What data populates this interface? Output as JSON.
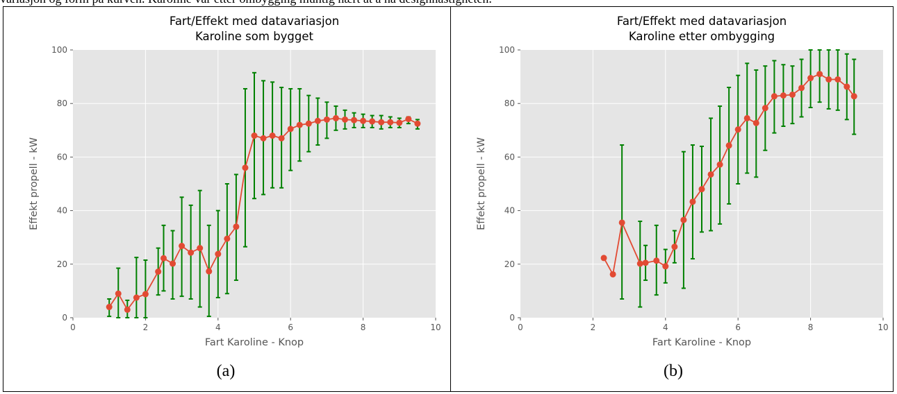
{
  "page_text": {
    "top_line": "variasjon og form på kurven. Karoline var etter ombygging muntig nært at å ha designhastigheten."
  },
  "captions": [
    "(a)",
    "(b)"
  ],
  "colors": {
    "plot_bg": "#e5e5e5",
    "grid": "#ffffff",
    "line": "#e24a33",
    "errorbar": "#008000"
  },
  "chart_data": [
    {
      "type": "line",
      "title": "Fart/Effekt med datavariasjon",
      "subtitle": "Karoline som bygget",
      "xlabel": "Fart Karoline - Knop",
      "ylabel": "Effekt propell - kW",
      "xlim": [
        0,
        10
      ],
      "ylim": [
        0,
        100
      ],
      "xticks": [
        0,
        2,
        4,
        6,
        8,
        10
      ],
      "yticks": [
        0,
        20,
        40,
        60,
        80,
        100
      ],
      "grid": true,
      "points": [
        {
          "x": 1.0,
          "y": 4,
          "lo": 0.5,
          "hi": 7
        },
        {
          "x": 1.25,
          "y": 9,
          "lo": 0,
          "hi": 18.5
        },
        {
          "x": 1.5,
          "y": 3,
          "lo": 0,
          "hi": 6.5
        },
        {
          "x": 1.75,
          "y": 7.5,
          "lo": 0,
          "hi": 22.5
        },
        {
          "x": 2.0,
          "y": 8.8,
          "lo": 0,
          "hi": 21.5
        },
        {
          "x": 2.35,
          "y": 17.2,
          "lo": 8.5,
          "hi": 26
        },
        {
          "x": 2.5,
          "y": 22.2,
          "lo": 10,
          "hi": 34.5
        },
        {
          "x": 2.75,
          "y": 20.2,
          "lo": 7,
          "hi": 32.5
        },
        {
          "x": 3.0,
          "y": 26.8,
          "lo": 8,
          "hi": 45
        },
        {
          "x": 3.25,
          "y": 24.3,
          "lo": 7,
          "hi": 42
        },
        {
          "x": 3.5,
          "y": 26,
          "lo": 4,
          "hi": 47.5
        },
        {
          "x": 3.75,
          "y": 17.3,
          "lo": 0.5,
          "hi": 34.5
        },
        {
          "x": 4.0,
          "y": 23.8,
          "lo": 7.5,
          "hi": 40
        },
        {
          "x": 4.25,
          "y": 29.5,
          "lo": 9,
          "hi": 50
        },
        {
          "x": 4.5,
          "y": 34,
          "lo": 14,
          "hi": 53.5
        },
        {
          "x": 4.75,
          "y": 56,
          "lo": 26.5,
          "hi": 85.5
        },
        {
          "x": 5.0,
          "y": 68,
          "lo": 44.5,
          "hi": 91.5
        },
        {
          "x": 5.25,
          "y": 67,
          "lo": 46,
          "hi": 88.5
        },
        {
          "x": 5.5,
          "y": 68,
          "lo": 48.5,
          "hi": 88
        },
        {
          "x": 5.75,
          "y": 67,
          "lo": 48.5,
          "hi": 86
        },
        {
          "x": 6.0,
          "y": 70.5,
          "lo": 55,
          "hi": 85.5
        },
        {
          "x": 6.25,
          "y": 72,
          "lo": 58.5,
          "hi": 85.5
        },
        {
          "x": 6.5,
          "y": 72.5,
          "lo": 62,
          "hi": 83
        },
        {
          "x": 6.75,
          "y": 73.5,
          "lo": 64.5,
          "hi": 82
        },
        {
          "x": 7.0,
          "y": 74,
          "lo": 67,
          "hi": 80.5
        },
        {
          "x": 7.25,
          "y": 74.5,
          "lo": 70,
          "hi": 79
        },
        {
          "x": 7.5,
          "y": 74,
          "lo": 70.5,
          "hi": 77.5
        },
        {
          "x": 7.75,
          "y": 73.8,
          "lo": 71,
          "hi": 76.5
        },
        {
          "x": 8.0,
          "y": 73.5,
          "lo": 71,
          "hi": 76
        },
        {
          "x": 8.25,
          "y": 73.3,
          "lo": 71,
          "hi": 75.5
        },
        {
          "x": 8.5,
          "y": 73,
          "lo": 70.5,
          "hi": 75.5
        },
        {
          "x": 8.75,
          "y": 73,
          "lo": 71,
          "hi": 75
        },
        {
          "x": 9.0,
          "y": 72.8,
          "lo": 71,
          "hi": 74.5
        },
        {
          "x": 9.25,
          "y": 74.2,
          "lo": 72.5,
          "hi": 75
        },
        {
          "x": 9.5,
          "y": 72.5,
          "lo": 70.5,
          "hi": 74
        }
      ]
    },
    {
      "type": "line",
      "title": "Fart/Effekt med datavariasjon",
      "subtitle": "Karoline etter ombygging",
      "xlabel": "Fart Karoline - Knop",
      "ylabel": "Effekt propell - kW",
      "xlim": [
        0,
        10
      ],
      "ylim": [
        0,
        100
      ],
      "xticks": [
        0,
        2,
        4,
        6,
        8,
        10
      ],
      "yticks": [
        0,
        20,
        40,
        60,
        80,
        100
      ],
      "grid": true,
      "points": [
        {
          "x": 2.3,
          "y": 22.3,
          "lo": null,
          "hi": null
        },
        {
          "x": 2.55,
          "y": 16.2,
          "lo": null,
          "hi": null
        },
        {
          "x": 2.8,
          "y": 35.5,
          "lo": 7,
          "hi": 64.5
        },
        {
          "x": 3.3,
          "y": 20.2,
          "lo": 4,
          "hi": 36
        },
        {
          "x": 3.45,
          "y": 20.5,
          "lo": 14,
          "hi": 27
        },
        {
          "x": 3.75,
          "y": 21.3,
          "lo": 8.5,
          "hi": 34.5
        },
        {
          "x": 4.0,
          "y": 19.2,
          "lo": 13,
          "hi": 25.5
        },
        {
          "x": 4.25,
          "y": 26.5,
          "lo": 20.5,
          "hi": 32.5
        },
        {
          "x": 4.5,
          "y": 36.5,
          "lo": 11,
          "hi": 62
        },
        {
          "x": 4.75,
          "y": 43.3,
          "lo": 22,
          "hi": 64.5
        },
        {
          "x": 5.0,
          "y": 48,
          "lo": 32,
          "hi": 64
        },
        {
          "x": 5.25,
          "y": 53.5,
          "lo": 32.5,
          "hi": 74.5
        },
        {
          "x": 5.5,
          "y": 57.2,
          "lo": 35,
          "hi": 79
        },
        {
          "x": 5.75,
          "y": 64.3,
          "lo": 42.5,
          "hi": 86
        },
        {
          "x": 6.0,
          "y": 70.3,
          "lo": 50,
          "hi": 90.5
        },
        {
          "x": 6.25,
          "y": 74.5,
          "lo": 54,
          "hi": 95
        },
        {
          "x": 6.5,
          "y": 72.7,
          "lo": 52.5,
          "hi": 92.5
        },
        {
          "x": 6.75,
          "y": 78.3,
          "lo": 62.5,
          "hi": 94
        },
        {
          "x": 7.0,
          "y": 82.7,
          "lo": 69,
          "hi": 96
        },
        {
          "x": 7.25,
          "y": 83,
          "lo": 71.5,
          "hi": 94.5
        },
        {
          "x": 7.5,
          "y": 83.3,
          "lo": 72.5,
          "hi": 94
        },
        {
          "x": 7.75,
          "y": 85.8,
          "lo": 75,
          "hi": 96.5
        },
        {
          "x": 8.0,
          "y": 89.5,
          "lo": 78.5,
          "hi": 100
        },
        {
          "x": 8.25,
          "y": 91,
          "lo": 80.5,
          "hi": 100
        },
        {
          "x": 8.5,
          "y": 89,
          "lo": 78,
          "hi": 100
        },
        {
          "x": 8.75,
          "y": 89,
          "lo": 77.5,
          "hi": 100
        },
        {
          "x": 9.0,
          "y": 86.3,
          "lo": 74,
          "hi": 98.5
        },
        {
          "x": 9.2,
          "y": 82.7,
          "lo": 68.5,
          "hi": 96.5
        }
      ]
    }
  ]
}
